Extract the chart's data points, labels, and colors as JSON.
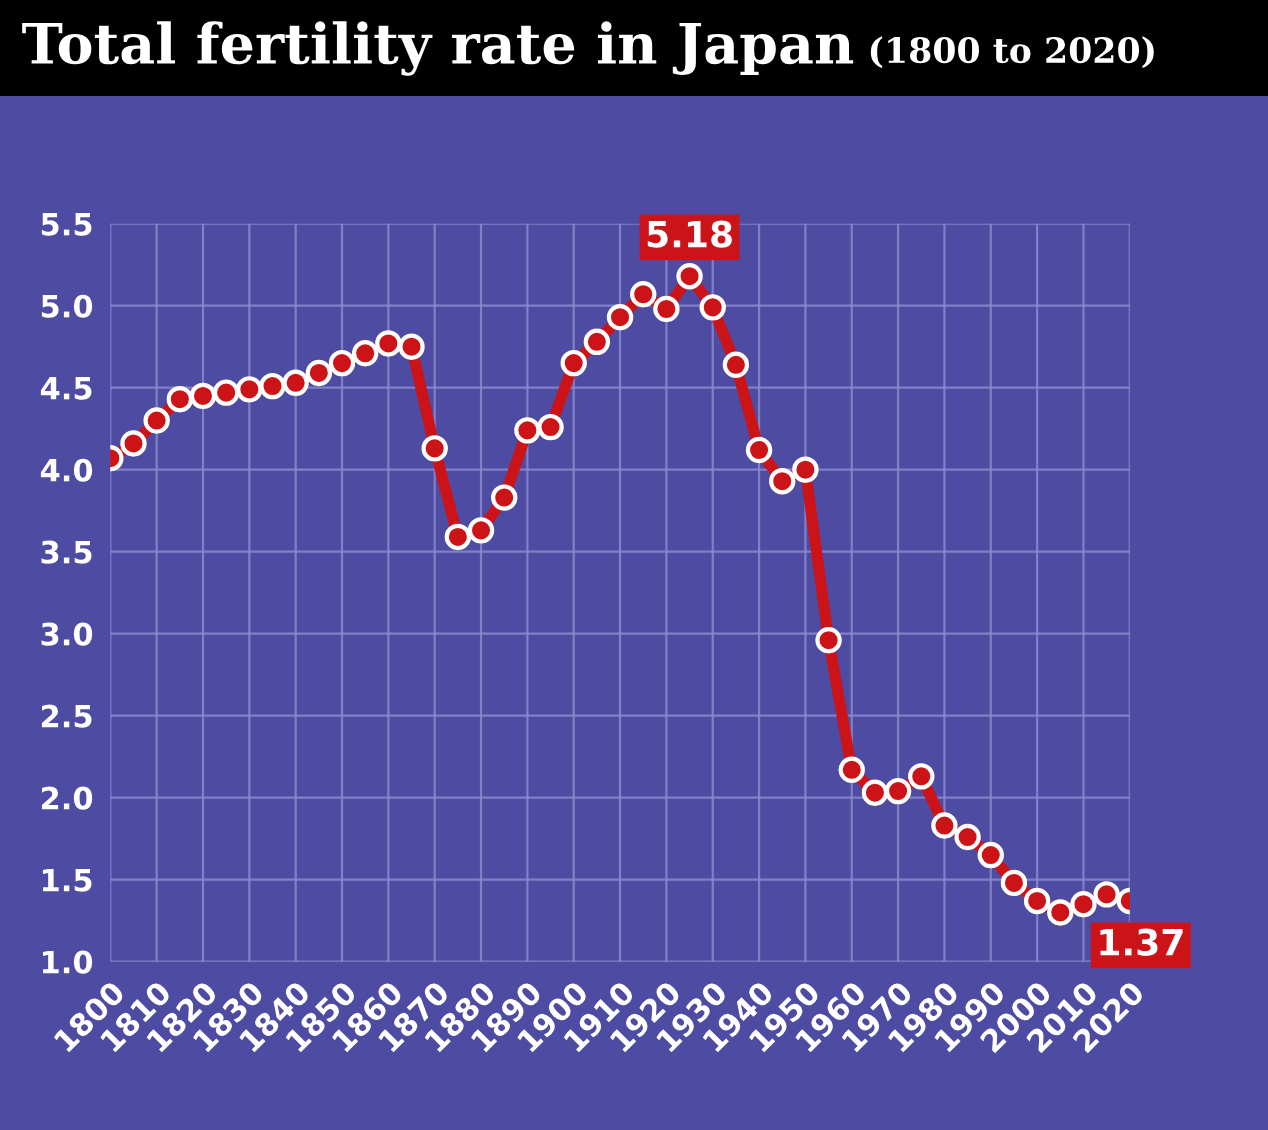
{
  "chart_data": {
    "type": "line",
    "title": "Total fertility rate in Japan",
    "subtitle": "(1800 to 2020)",
    "x": [
      1800,
      1805,
      1810,
      1815,
      1820,
      1825,
      1830,
      1835,
      1840,
      1845,
      1850,
      1855,
      1860,
      1865,
      1870,
      1875,
      1880,
      1885,
      1890,
      1895,
      1900,
      1905,
      1910,
      1915,
      1920,
      1925,
      1930,
      1935,
      1940,
      1945,
      1950,
      1955,
      1960,
      1965,
      1970,
      1975,
      1980,
      1985,
      1990,
      1995,
      2000,
      2005,
      2010,
      2015,
      2020
    ],
    "series": [
      {
        "color": "#cc1418",
        "values": [
          4.07,
          4.16,
          4.3,
          4.43,
          4.45,
          4.47,
          4.49,
          4.51,
          4.53,
          4.59,
          4.65,
          4.71,
          4.77,
          4.75,
          4.13,
          3.59,
          3.63,
          3.83,
          4.24,
          4.26,
          4.65,
          4.78,
          4.93,
          5.07,
          4.98,
          5.18,
          4.99,
          4.64,
          4.12,
          3.93,
          4.0,
          2.96,
          2.17,
          2.03,
          2.04,
          2.13,
          1.83,
          1.76,
          1.65,
          1.48,
          1.37,
          1.3,
          1.35,
          1.41,
          1.37
        ]
      }
    ],
    "annotations": [
      {
        "text": "5.18",
        "x": 1925,
        "y": 5.18
      },
      {
        "text": "1.37",
        "x": 2020,
        "y": 1.37
      }
    ],
    "xlim": [
      1800,
      2020
    ],
    "xticks": [
      1800,
      1810,
      1820,
      1830,
      1840,
      1850,
      1860,
      1870,
      1880,
      1890,
      1900,
      1910,
      1920,
      1930,
      1940,
      1950,
      1960,
      1970,
      1980,
      1990,
      2000,
      2010,
      2020
    ],
    "ylim": [
      1.0,
      5.5
    ],
    "yticks": [
      {
        "value": 1,
        "label": "1.0"
      },
      1.5,
      {
        "value": 2,
        "label": "2.0"
      },
      2.5,
      {
        "value": 3,
        "label": "3.0"
      },
      3.5,
      {
        "value": 4,
        "label": "4.0"
      },
      4.5,
      {
        "value": 5,
        "label": "5.0"
      },
      5.5
    ],
    "grid": true,
    "marker": "circle",
    "line_style": "solid",
    "legend": false
  }
}
